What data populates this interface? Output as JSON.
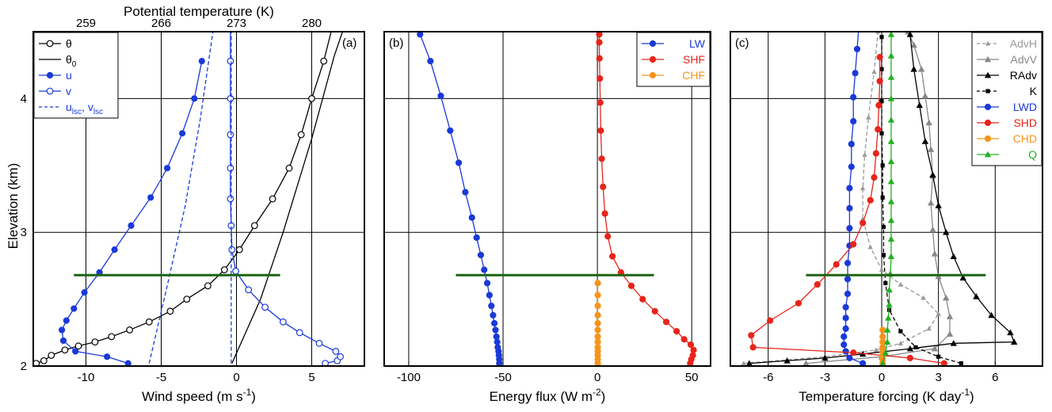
{
  "figure": {
    "ylabel": "Elevation (km)",
    "y_ticks": [
      "2",
      "3",
      "4"
    ]
  },
  "chart_data": [
    {
      "type": "line",
      "panel_label": "(a)",
      "xlabel_main": "Wind speed (m s",
      "xlabel_sup": "-1",
      "xlabel_close": ")",
      "xlim": [
        -13.5,
        8.5
      ],
      "ylim": [
        2.0,
        4.5
      ],
      "grid": true,
      "x_ticks": [
        {
          "v": -10,
          "t": "-10"
        },
        {
          "v": -5,
          "t": "-5"
        },
        {
          "v": 0,
          "t": "0"
        },
        {
          "v": 5,
          "t": "5"
        }
      ],
      "top_axis": {
        "label": "Potential temperature (K)",
        "ticks": [
          {
            "v": -10,
            "t": "259"
          },
          {
            "v": -5,
            "t": "266"
          },
          {
            "v": 0,
            "t": "273"
          },
          {
            "v": 5,
            "t": "280"
          }
        ]
      },
      "legend_position": "top-left",
      "legend": [
        {
          "main": "θ",
          "sub": "",
          "color": "#000000",
          "marker": "open",
          "dash": false
        },
        {
          "main": "θ",
          "sub": "0",
          "color": "#000000",
          "marker": "none",
          "dash": false
        },
        {
          "main": "u",
          "sub": "",
          "color": "#1a3ad8",
          "marker": "filled",
          "dash": false
        },
        {
          "main": "v",
          "sub": "",
          "color": "#1a3ad8",
          "marker": "open",
          "dash": false
        },
        {
          "main": "u",
          "sub": "lsc",
          "sep": ", ",
          "main2": "v",
          "sub2": "lsc",
          "color": "#1a3ad8",
          "marker": "none",
          "dash": true
        }
      ],
      "hline": {
        "y": 2.68,
        "x1": -10.8,
        "x2": 2.9,
        "color": "#1c6412"
      },
      "series": [
        {
          "color": "#000000",
          "marker": "open",
          "dash": false,
          "x": [
            -13.3,
            -12.8,
            -12.3,
            -11.4,
            -10.5,
            -9.4,
            -8.3,
            -7.1,
            -5.8,
            -4.4,
            -3.3,
            -1.9,
            -0.8,
            0.2,
            1.2,
            2.4,
            3.5,
            4.3,
            5.0,
            5.8,
            6.4
          ],
          "y": [
            2.02,
            2.04,
            2.08,
            2.12,
            2.15,
            2.18,
            2.22,
            2.27,
            2.33,
            2.41,
            2.5,
            2.6,
            2.72,
            2.87,
            3.05,
            3.25,
            3.48,
            3.73,
            4.0,
            4.28,
            4.55
          ]
        },
        {
          "color": "#000000",
          "marker": "none",
          "dash": false,
          "x": [
            -0.3,
            1.6,
            3.1,
            5.0,
            6.5,
            7.2
          ],
          "y": [
            2.02,
            2.5,
            3.0,
            3.7,
            4.32,
            4.55
          ]
        },
        {
          "color": "#1a3ad8",
          "marker": "filled",
          "dash": false,
          "x": [
            -7.2,
            -8.6,
            -10.7,
            -11.5,
            -11.6,
            -11.3,
            -10.8,
            -10.1,
            -9.1,
            -8.1,
            -7.0,
            -5.7,
            -4.6,
            -3.6,
            -2.8,
            -2.3
          ],
          "y": [
            2.02,
            2.07,
            2.11,
            2.19,
            2.27,
            2.34,
            2.43,
            2.55,
            2.7,
            2.87,
            3.05,
            3.26,
            3.48,
            3.74,
            4.0,
            4.28
          ]
        },
        {
          "color": "#1a3ad8",
          "marker": "open",
          "dash": false,
          "x": [
            5.9,
            6.7,
            6.9,
            6.6,
            5.5,
            4.2,
            3.1,
            1.9,
            0.8,
            -0.05,
            -0.3,
            -0.35,
            -0.4,
            -0.4,
            -0.4,
            -0.4,
            -0.4,
            -0.4,
            -0.4,
            -0.4,
            -0.4
          ],
          "y": [
            2.02,
            2.04,
            2.07,
            2.11,
            2.17,
            2.25,
            2.33,
            2.44,
            2.57,
            2.71,
            2.87,
            3.05,
            3.25,
            3.48,
            3.73,
            4.0,
            4.28,
            4.55,
            4.55,
            4.55,
            4.55
          ]
        },
        {
          "color": "#1a3ad8",
          "marker": "none",
          "dash": true,
          "x": [
            -5.8,
            -4.6,
            -3.4,
            -2.4,
            -1.5
          ],
          "y": [
            2.02,
            2.6,
            3.2,
            3.85,
            4.55
          ]
        },
        {
          "color": "#1a3ad8",
          "marker": "none",
          "dash": true,
          "x": [
            -0.35,
            -0.35
          ],
          "y": [
            2.02,
            4.55
          ]
        }
      ]
    },
    {
      "type": "line",
      "panel_label": "(b)",
      "xlabel_main": "Energy flux (W m",
      "xlabel_sup": "-2",
      "xlabel_close": ")",
      "xlim": [
        -113,
        60
      ],
      "ylim": [
        2.0,
        4.5
      ],
      "grid": true,
      "x_ticks": [
        {
          "v": -100,
          "t": "-100"
        },
        {
          "v": -50,
          "t": "-50"
        },
        {
          "v": 0,
          "t": "0"
        },
        {
          "v": 50,
          "t": "50"
        }
      ],
      "legend_position": "top-right",
      "legend": [
        {
          "main": "LW",
          "sub": "",
          "color": "#1a3ad8",
          "marker": "filled",
          "dash": false
        },
        {
          "main": "SHF",
          "sub": "",
          "color": "#e8241a",
          "marker": "filled",
          "dash": false
        },
        {
          "main": "CHF",
          "sub": "",
          "color": "#f7941d",
          "marker": "filled",
          "dash": false
        }
      ],
      "hline": {
        "y": 2.68,
        "x1": -75,
        "x2": 30,
        "color": "#1c6412"
      },
      "series": [
        {
          "color": "#1a3ad8",
          "marker": "filled",
          "dash": false,
          "x": [
            -52,
            -52,
            -52.2,
            -52.4,
            -52.8,
            -53.1,
            -53.5,
            -54,
            -54.6,
            -55.3,
            -56.2,
            -57.2,
            -58.4,
            -60,
            -61.8,
            -64,
            -66.5,
            -70,
            -73.5,
            -78,
            -83,
            -88.5,
            -94
          ],
          "y": [
            2.02,
            2.05,
            2.08,
            2.11,
            2.14,
            2.18,
            2.22,
            2.27,
            2.32,
            2.38,
            2.45,
            2.53,
            2.62,
            2.72,
            2.83,
            2.96,
            3.11,
            3.3,
            3.52,
            3.76,
            4.02,
            4.28,
            4.48
          ]
        },
        {
          "color": "#e8241a",
          "marker": "filled",
          "dash": false,
          "x": [
            49.2,
            49.8,
            50.6,
            51.0,
            49.5,
            46.0,
            42.0,
            36.5,
            30.5,
            24.0,
            18.0,
            12.5,
            8.0,
            5.5,
            4.0,
            3.0,
            2.3,
            1.8,
            1.5,
            1.3,
            1.1,
            1.0,
            1.0
          ],
          "y": [
            2.02,
            2.05,
            2.08,
            2.12,
            2.16,
            2.2,
            2.26,
            2.33,
            2.41,
            2.5,
            2.6,
            2.7,
            2.82,
            2.97,
            3.14,
            3.34,
            3.55,
            3.76,
            3.97,
            4.15,
            4.3,
            4.42,
            4.48
          ]
        },
        {
          "color": "#f7941d",
          "marker": "filled",
          "dash": false,
          "x": [
            0.2,
            0.2,
            0.2,
            0.2,
            0.2,
            0.2,
            0.2,
            0.2,
            0.2,
            0.2,
            0.2,
            0.2,
            0.2
          ],
          "y": [
            2.02,
            2.05,
            2.08,
            2.11,
            2.14,
            2.18,
            2.22,
            2.27,
            2.32,
            2.38,
            2.45,
            2.53,
            2.62
          ]
        }
      ]
    },
    {
      "type": "line",
      "panel_label": "(c)",
      "xlabel_main": "Temperature forcing (K day",
      "xlabel_sup": "-1",
      "xlabel_close": ")",
      "xlim": [
        -8,
        8.5
      ],
      "ylim": [
        2.0,
        4.5
      ],
      "grid": true,
      "x_ticks": [
        {
          "v": -6,
          "t": "-6"
        },
        {
          "v": -3,
          "t": "-3"
        },
        {
          "v": 0,
          "t": "0"
        },
        {
          "v": 3,
          "t": "3"
        },
        {
          "v": 6,
          "t": "6"
        }
      ],
      "legend_position": "top-right",
      "legend": [
        {
          "main": "AdvH",
          "sub": "",
          "color": "#999999",
          "marker": "smalltri",
          "dash": true
        },
        {
          "main": "AdvV",
          "sub": "",
          "color": "#888888",
          "marker": "tri",
          "dash": false
        },
        {
          "main": "RAdv",
          "sub": "",
          "color": "#000000",
          "marker": "tri",
          "dash": false
        },
        {
          "main": "K",
          "sub": "",
          "color": "#000000",
          "marker": "square",
          "dash": true
        },
        {
          "main": "LWD",
          "sub": "",
          "color": "#1a3ad8",
          "marker": "filled",
          "dash": false
        },
        {
          "main": "SHD",
          "sub": "",
          "color": "#e8241a",
          "marker": "filled",
          "dash": false
        },
        {
          "main": "CHD",
          "sub": "",
          "color": "#f7941d",
          "marker": "filled",
          "dash": false
        },
        {
          "main": "Q",
          "sub": "",
          "color": "#22b022",
          "marker": "tri",
          "dash": false
        }
      ],
      "hline": {
        "y": 2.68,
        "x1": -4,
        "x2": 5.5,
        "color": "#1c6412"
      },
      "series": [
        {
          "color": "#999999",
          "marker": "smalltri",
          "dash": true,
          "x": [
            -7.3,
            -3.0,
            -0.3,
            1.0,
            2.5,
            3.0,
            2.2,
            1.0,
            0.0,
            -0.6,
            -1.0,
            -1.0,
            -0.9,
            -0.7,
            -0.4,
            -0.2
          ],
          "y": [
            2.02,
            2.07,
            2.12,
            2.17,
            2.28,
            2.39,
            2.51,
            2.61,
            2.72,
            2.89,
            3.1,
            3.33,
            3.58,
            3.86,
            4.2,
            4.5
          ]
        },
        {
          "color": "#888888",
          "marker": "tri",
          "dash": false,
          "x": [
            -4.0,
            0.0,
            2.8,
            3.6,
            3.6,
            3.4,
            3.0,
            2.8,
            2.7,
            2.6,
            2.7,
            2.6,
            2.5,
            2.3,
            2.1,
            1.7,
            1.4
          ],
          "y": [
            2.02,
            2.07,
            2.13,
            2.24,
            2.37,
            2.51,
            2.67,
            2.84,
            3.02,
            3.22,
            3.42,
            3.62,
            3.82,
            4.02,
            4.22,
            4.4,
            4.5
          ]
        },
        {
          "color": "#000000",
          "marker": "tri",
          "dash": false,
          "x": [
            -7.0,
            -5.0,
            -3.0,
            -1.0,
            1.5,
            3.8,
            7.0,
            6.8,
            5.8,
            5.0,
            4.3,
            3.8,
            3.4,
            3.0,
            2.7,
            2.3,
            2.0,
            1.7,
            1.5
          ],
          "y": [
            2.02,
            2.04,
            2.06,
            2.09,
            2.13,
            2.17,
            2.18,
            2.25,
            2.38,
            2.52,
            2.66,
            2.82,
            3.0,
            3.2,
            3.43,
            3.68,
            3.95,
            4.22,
            4.48
          ]
        },
        {
          "color": "#000000",
          "marker": "square",
          "dash": true,
          "x": [
            4.2,
            3.0,
            1.8,
            1.0,
            0.4,
            0.2,
            0.1,
            0.1,
            0.05,
            0.05,
            0.0,
            0.0,
            0.0,
            0.0
          ],
          "y": [
            2.02,
            2.07,
            2.14,
            2.26,
            2.42,
            2.62,
            2.83,
            3.04,
            3.26,
            3.5,
            3.74,
            3.98,
            4.22,
            4.46
          ]
        },
        {
          "color": "#1a3ad8",
          "marker": "filled",
          "dash": false,
          "x": [
            -1.0,
            -1.7,
            -1.9,
            -2.0,
            -2.0,
            -1.9,
            -1.9,
            -1.9,
            -1.8,
            -1.8,
            -1.8,
            -1.7,
            -1.7,
            -1.7,
            -1.7,
            -1.6,
            -1.6,
            -1.5,
            -1.5,
            -1.4,
            -1.3,
            -1.2
          ],
          "y": [
            2.02,
            2.06,
            2.11,
            2.16,
            2.22,
            2.28,
            2.36,
            2.44,
            2.54,
            2.65,
            2.77,
            2.9,
            3.03,
            3.18,
            3.33,
            3.49,
            3.66,
            3.83,
            4.01,
            4.19,
            4.37,
            4.55
          ]
        },
        {
          "color": "#e8241a",
          "marker": "filled",
          "dash": false,
          "x": [
            3.3,
            1.5,
            -1.5,
            -6.8,
            -6.9,
            -5.9,
            -4.4,
            -3.4,
            -2.4,
            -1.5,
            -1.0,
            -0.6,
            -0.4,
            -0.3,
            -0.2,
            -0.15,
            -0.1,
            -0.1
          ],
          "y": [
            2.02,
            2.06,
            2.1,
            2.14,
            2.23,
            2.34,
            2.47,
            2.61,
            2.76,
            2.91,
            3.07,
            3.24,
            3.41,
            3.59,
            3.77,
            3.95,
            4.13,
            4.31
          ]
        },
        {
          "color": "#f7941d",
          "marker": "filled",
          "dash": false,
          "x": [
            0.05,
            0.05,
            0.05,
            0.05,
            0.05,
            0.05,
            0.05,
            0.05
          ],
          "y": [
            2.02,
            2.05,
            2.08,
            2.11,
            2.14,
            2.18,
            2.22,
            2.27
          ]
        },
        {
          "color": "#22b022",
          "marker": "tri",
          "dash": false,
          "x": [
            0.05,
            0.2,
            0.3,
            0.3,
            0.35,
            0.4,
            0.4,
            0.45,
            0.5,
            0.5,
            0.5,
            0.5,
            0.5,
            0.5,
            0.5,
            0.5,
            0.5,
            0.5,
            0.5,
            0.5,
            0.5
          ],
          "y": [
            2.02,
            2.1,
            2.18,
            2.27,
            2.36,
            2.46,
            2.57,
            2.69,
            2.82,
            2.95,
            3.09,
            3.23,
            3.38,
            3.53,
            3.68,
            3.84,
            4.0,
            4.16,
            4.32,
            4.48,
            4.55
          ]
        }
      ]
    }
  ]
}
